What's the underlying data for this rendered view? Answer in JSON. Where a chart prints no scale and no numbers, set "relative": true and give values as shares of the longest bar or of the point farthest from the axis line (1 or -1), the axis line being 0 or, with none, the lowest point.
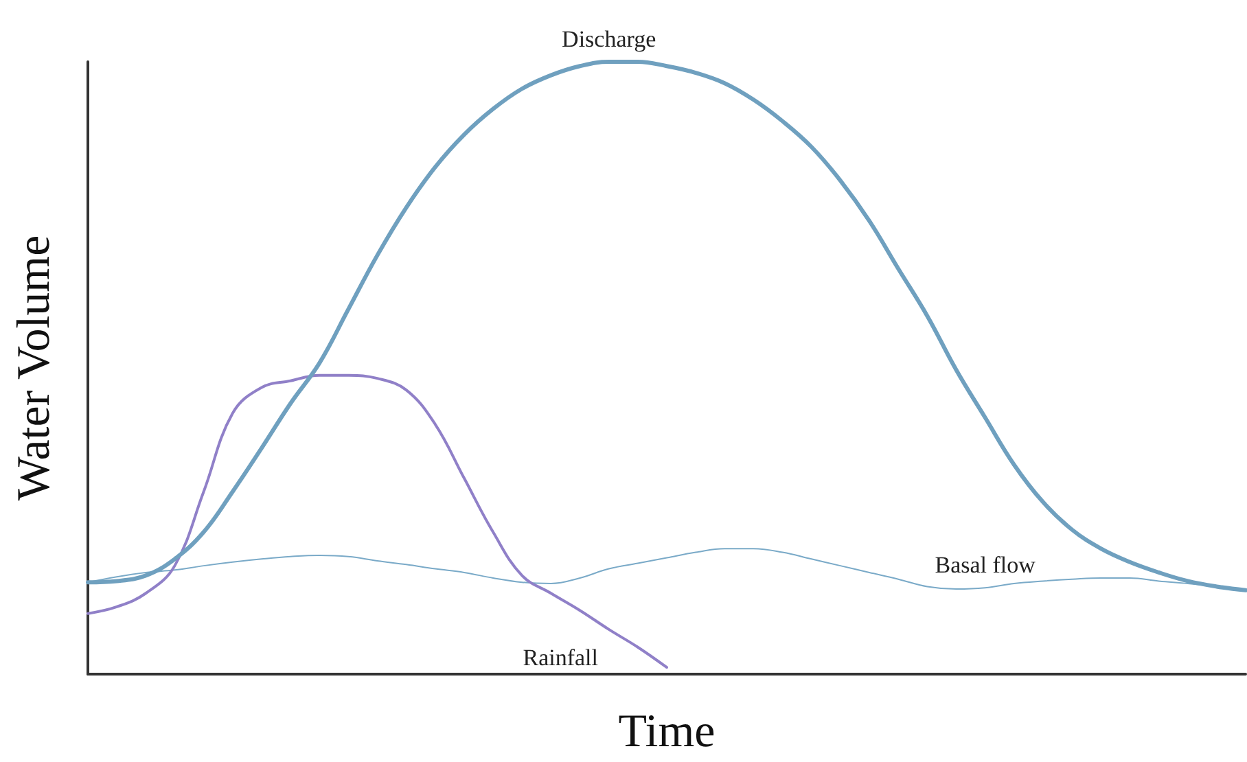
{
  "chart_data": {
    "type": "line",
    "relative": true,
    "xlabel": "Time",
    "ylabel": "Water Volume",
    "legend": false,
    "grid": false,
    "marker": "none",
    "tick_labels": false,
    "categories": [
      null,
      null,
      null,
      null,
      null,
      null,
      null,
      null,
      null,
      null,
      null,
      null,
      null,
      null,
      null,
      null,
      null,
      null,
      null,
      null,
      null,
      null,
      null,
      null,
      null,
      null,
      null,
      null,
      null,
      null,
      null,
      null,
      null,
      null,
      null,
      null,
      null,
      null,
      null,
      null,
      null
    ],
    "series": [
      {
        "name": "Discharge",
        "color": "#6fa0bf",
        "values": [
          0.15,
          0.152,
          0.161,
          0.188,
          0.232,
          0.298,
          0.369,
          0.442,
          0.508,
          0.596,
          0.684,
          0.762,
          0.828,
          0.881,
          0.923,
          0.956,
          0.978,
          0.993,
          1,
          1,
          0.993,
          0.982,
          0.965,
          0.938,
          0.903,
          0.861,
          0.806,
          0.74,
          0.662,
          0.585,
          0.497,
          0.419,
          0.342,
          0.281,
          0.236,
          0.205,
          0.183,
          0.166,
          0.152,
          0.143,
          0.137
        ]
      },
      {
        "name": "Rainfall",
        "color": "#9080c8",
        "values": [
          0.099,
          0.11,
          0.132,
          0.177,
          0.298,
          0.426,
          0.468,
          0.479,
          0.488,
          0.488,
          0.483,
          0.464,
          0.408,
          0.32,
          0.232,
          0.161,
          0.132,
          0.104,
          0.073,
          0.044,
          0.011,
          null,
          null,
          null,
          null,
          null,
          null,
          null,
          null,
          null,
          null,
          null,
          null,
          null,
          null,
          null,
          null,
          null,
          null,
          null,
          null
        ]
      },
      {
        "name": "Basal flow",
        "color": "#7aaac8",
        "values": [
          0.15,
          0.159,
          0.166,
          0.17,
          0.177,
          0.183,
          0.188,
          0.192,
          0.194,
          0.192,
          0.185,
          0.179,
          0.172,
          0.166,
          0.157,
          0.15,
          0.148,
          0.157,
          0.172,
          0.181,
          0.19,
          0.199,
          0.205,
          0.205,
          0.199,
          0.188,
          0.177,
          0.166,
          0.155,
          0.143,
          0.139,
          0.141,
          0.148,
          0.152,
          0.155,
          0.157,
          0.157,
          0.152,
          0.148,
          0.143,
          0.137
        ]
      }
    ]
  }
}
